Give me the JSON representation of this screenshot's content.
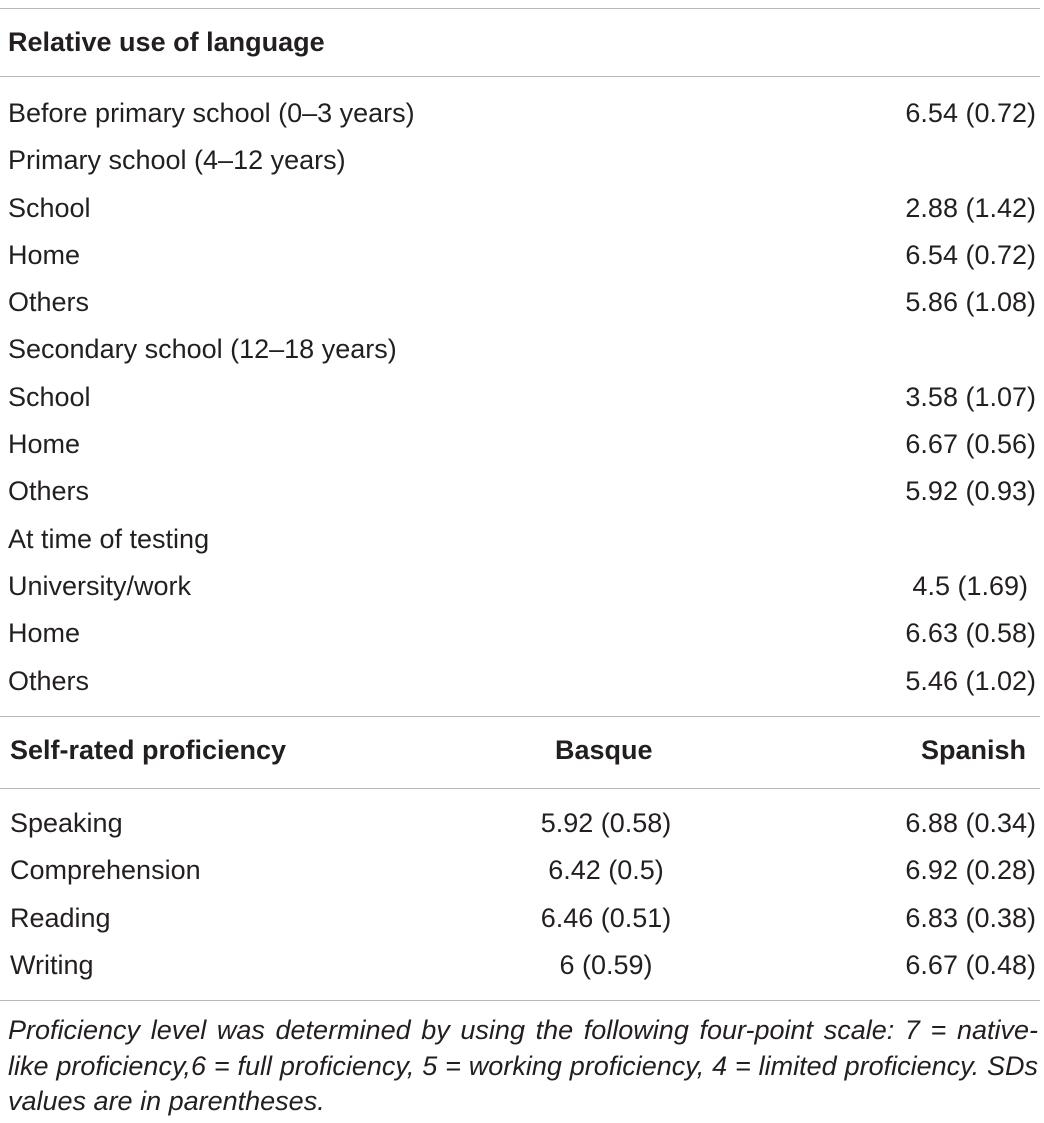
{
  "section1": {
    "heading": "Relative use of language",
    "rows": [
      {
        "label": "Before primary school (0–3 years)",
        "value": "6.54 (0.72)"
      },
      {
        "label": "Primary school (4–12 years)",
        "value": ""
      },
      {
        "label": "School",
        "value": "2.88 (1.42)"
      },
      {
        "label": "Home",
        "value": "6.54 (0.72)"
      },
      {
        "label": "Others",
        "value": "5.86 (1.08)"
      },
      {
        "label": "Secondary school (12–18 years)",
        "value": ""
      },
      {
        "label": "School",
        "value": "3.58 (1.07)"
      },
      {
        "label": "Home",
        "value": "6.67 (0.56)"
      },
      {
        "label": "Others",
        "value": "5.92 (0.93)"
      },
      {
        "label": "At time of testing",
        "value": ""
      },
      {
        "label": "University/work",
        "value": "4.5 (1.69)"
      },
      {
        "label": "Home",
        "value": "6.63 (0.58)"
      },
      {
        "label": "Others",
        "value": "5.46 (1.02)"
      }
    ]
  },
  "section2": {
    "heading": "Self-rated proficiency",
    "col_basque": "Basque",
    "col_spanish": "Spanish",
    "rows": [
      {
        "label": "Speaking",
        "basque": "5.92 (0.58)",
        "spanish": "6.88 (0.34)"
      },
      {
        "label": "Comprehension",
        "basque": "6.42 (0.5)",
        "spanish": "6.92 (0.28)"
      },
      {
        "label": "Reading",
        "basque": "6.46 (0.51)",
        "spanish": "6.83 (0.38)"
      },
      {
        "label": "Writing",
        "basque": "6 (0.59)",
        "spanish": "6.67 (0.48)"
      }
    ]
  },
  "footnote": "Proficiency level was determined by using the following four-point scale: 7 = native-like proficiency,6 = full proficiency, 5 = working proficiency, 4 = limited proficiency. SDs values are in parentheses."
}
